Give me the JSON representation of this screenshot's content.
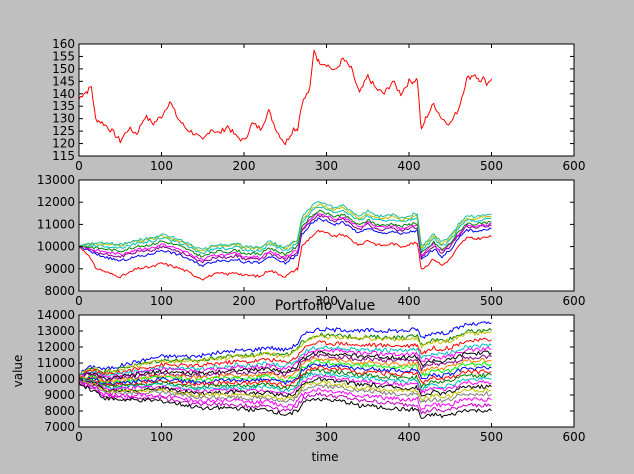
{
  "figure": {
    "background": "#bfbfbf"
  },
  "chart_data": [
    {
      "type": "line",
      "title": "",
      "xlabel": "",
      "ylabel": "",
      "xlim": [
        0,
        600
      ],
      "ylim": [
        115,
        160
      ],
      "xticks": [
        "0",
        "100",
        "200",
        "300",
        "400",
        "500",
        "600"
      ],
      "yticks": [
        "115",
        "120",
        "125",
        "130",
        "135",
        "140",
        "145",
        "150",
        "155",
        "160"
      ],
      "series": [
        {
          "color": "#ff0000",
          "x": [
            0,
            5,
            10,
            15,
            20,
            30,
            40,
            50,
            60,
            70,
            80,
            90,
            100,
            110,
            120,
            130,
            140,
            150,
            160,
            170,
            180,
            190,
            200,
            210,
            220,
            230,
            240,
            250,
            260,
            265,
            270,
            280,
            285,
            290,
            300,
            310,
            320,
            330,
            340,
            350,
            360,
            370,
            380,
            390,
            400,
            405,
            410,
            415,
            420,
            430,
            440,
            450,
            460,
            470,
            480,
            485,
            490,
            495,
            500
          ],
          "y": [
            138,
            140,
            141,
            143,
            130,
            128,
            125,
            121,
            126,
            124,
            131,
            128,
            131,
            137,
            130,
            126,
            124,
            121,
            126,
            124,
            127,
            123,
            121,
            128,
            126,
            133,
            125,
            120,
            126,
            126,
            136,
            142,
            158,
            153,
            152,
            149,
            154,
            150,
            140,
            147,
            142,
            140,
            145,
            140,
            145,
            145,
            146,
            125,
            130,
            136,
            130,
            128,
            134,
            146,
            148,
            145,
            146,
            143,
            146
          ]
        }
      ]
    },
    {
      "type": "line",
      "title": "",
      "xlabel": "",
      "ylabel": "",
      "xlim": [
        0,
        600
      ],
      "ylim": [
        8000,
        13000
      ],
      "xticks": [
        "0",
        "100",
        "200",
        "300",
        "400",
        "500",
        "600"
      ],
      "yticks": [
        "8000",
        "9000",
        "10000",
        "11000",
        "12000",
        "13000"
      ],
      "x": [
        0,
        10,
        20,
        30,
        40,
        50,
        60,
        70,
        80,
        90,
        100,
        110,
        120,
        130,
        140,
        150,
        160,
        170,
        180,
        190,
        200,
        210,
        220,
        230,
        240,
        250,
        260,
        265,
        270,
        280,
        290,
        300,
        310,
        320,
        330,
        340,
        350,
        360,
        370,
        380,
        390,
        400,
        405,
        410,
        415,
        420,
        430,
        440,
        450,
        460,
        470,
        480,
        490,
        500
      ],
      "base": [
        10000,
        10000,
        9950,
        9900,
        9850,
        9800,
        9900,
        10000,
        10050,
        10100,
        10250,
        10150,
        10050,
        9900,
        9700,
        9550,
        9700,
        9800,
        9750,
        9850,
        9700,
        9700,
        9650,
        9950,
        9800,
        9650,
        9900,
        10000,
        10900,
        11300,
        11600,
        11500,
        11350,
        11450,
        11200,
        10950,
        11200,
        11000,
        10950,
        11050,
        10900,
        11000,
        11050,
        11050,
        9700,
        9850,
        10200,
        9850,
        10150,
        10650,
        11050,
        11000,
        11050,
        11100
      ],
      "series": [
        {
          "color": "#ff0000",
          "offsets": [
            0,
            -300,
            -900,
            -1000,
            -1100,
            -1150,
            -1100,
            -1000,
            -1000,
            -1000,
            -1000,
            -1000,
            -1000,
            -1000,
            -1000,
            -1000,
            -1000,
            -1000,
            -1000,
            -1000,
            -1000,
            -1000,
            -1000,
            -1000,
            -1000,
            -1000,
            -1000,
            -1000,
            -900,
            -900,
            -900,
            -900,
            -900,
            -900,
            -900,
            -900,
            -900,
            -900,
            -900,
            -900,
            -900,
            -900,
            -900,
            -900,
            -700,
            -750,
            -750,
            -700,
            -700,
            -650,
            -650,
            -650,
            -650,
            -650
          ]
        },
        {
          "color": "#0000ff",
          "offsets": [
            0,
            -150,
            -300,
            -350,
            -400,
            -450,
            -450,
            -450,
            -450,
            -400,
            -400,
            -400,
            -400,
            -400,
            -400,
            -400,
            -400,
            -400,
            -400,
            -400,
            -400,
            -400,
            -400,
            -400,
            -400,
            -400,
            -400,
            -400,
            -350,
            -350,
            -350,
            -350,
            -350,
            -350,
            -350,
            -350,
            -350,
            -350,
            -350,
            -350,
            -350,
            -350,
            -350,
            -350,
            -300,
            -300,
            -300,
            -300,
            -300,
            -300,
            -300,
            -300,
            -300,
            -300
          ]
        },
        {
          "color": "#7f007f",
          "offsets": [
            0,
            -100,
            -200,
            -250,
            -250,
            -250,
            -250,
            -250,
            -250,
            -250,
            -250,
            -250,
            -250,
            -250,
            -250,
            -250,
            -250,
            -250,
            -250,
            -250,
            -250,
            -250,
            -250,
            -250,
            -250,
            -250,
            -250,
            -250,
            -200,
            -200,
            -200,
            -200,
            -200,
            -200,
            -200,
            -200,
            -200,
            -200,
            -200,
            -200,
            -200,
            -200,
            -200,
            -200,
            -150,
            -150,
            -150,
            -150,
            -150,
            -150,
            -150,
            -150,
            -150,
            -150
          ]
        },
        {
          "color": "#ff00ff",
          "offsets": [
            0,
            -50,
            -100,
            -120,
            -130,
            -150,
            -150,
            -150,
            -150,
            -150,
            -150,
            -150,
            -150,
            -150,
            -150,
            -150,
            -150,
            -150,
            -150,
            -150,
            -150,
            -150,
            -150,
            -150,
            -150,
            -150,
            -150,
            -150,
            -100,
            -100,
            -100,
            -100,
            -100,
            -100,
            -100,
            -100,
            -100,
            -100,
            -100,
            -100,
            -100,
            -100,
            -100,
            -100,
            -80,
            -80,
            -80,
            -80,
            -80,
            -80,
            -80,
            -80,
            -80,
            -80
          ]
        },
        {
          "color": "#008000",
          "offsets": [
            0,
            0,
            0,
            0,
            0,
            0,
            0,
            0,
            0,
            0,
            0,
            0,
            0,
            0,
            0,
            0,
            0,
            0,
            0,
            0,
            0,
            0,
            0,
            0,
            0,
            0,
            0,
            0,
            0,
            0,
            0,
            0,
            0,
            0,
            0,
            0,
            0,
            0,
            0,
            0,
            0,
            0,
            0,
            0,
            0,
            0,
            0,
            0,
            0,
            0,
            0,
            0,
            0,
            0
          ]
        },
        {
          "color": "#00bfbf",
          "offsets": [
            0,
            50,
            100,
            120,
            140,
            150,
            150,
            150,
            150,
            150,
            150,
            150,
            150,
            150,
            150,
            150,
            150,
            150,
            150,
            150,
            150,
            150,
            150,
            150,
            150,
            150,
            150,
            150,
            200,
            200,
            200,
            200,
            200,
            200,
            200,
            200,
            200,
            200,
            200,
            200,
            200,
            200,
            200,
            200,
            150,
            150,
            150,
            150,
            150,
            150,
            150,
            150,
            150,
            150
          ]
        },
        {
          "color": "#bfbf00",
          "offsets": [
            0,
            80,
            160,
            200,
            220,
            240,
            240,
            240,
            240,
            240,
            240,
            240,
            240,
            240,
            240,
            240,
            240,
            240,
            240,
            240,
            240,
            240,
            240,
            240,
            240,
            240,
            240,
            240,
            300,
            300,
            300,
            300,
            300,
            300,
            300,
            300,
            300,
            300,
            300,
            300,
            300,
            300,
            300,
            300,
            250,
            250,
            250,
            250,
            250,
            250,
            250,
            250,
            250,
            250
          ]
        },
        {
          "color": "#1abc9c",
          "offsets": [
            0,
            100,
            200,
            250,
            280,
            300,
            300,
            300,
            300,
            300,
            300,
            300,
            300,
            300,
            300,
            300,
            300,
            300,
            300,
            300,
            300,
            300,
            300,
            300,
            300,
            300,
            300,
            300,
            400,
            450,
            450,
            400,
            400,
            400,
            400,
            400,
            400,
            400,
            400,
            400,
            400,
            400,
            400,
            400,
            350,
            350,
            350,
            350,
            350,
            350,
            350,
            350,
            350,
            350
          ]
        }
      ]
    },
    {
      "type": "line",
      "title": "Portfolio Value",
      "xlabel": "time",
      "ylabel": "value",
      "xlim": [
        0,
        600
      ],
      "ylim": [
        7000,
        14000
      ],
      "xticks": [
        "0",
        "100",
        "200",
        "300",
        "400",
        "500",
        "600"
      ],
      "yticks": [
        "7000",
        "8000",
        "9000",
        "10000",
        "11000",
        "12000",
        "13000",
        "14000"
      ],
      "x": [
        0,
        10,
        20,
        30,
        40,
        50,
        60,
        70,
        80,
        90,
        100,
        110,
        120,
        130,
        140,
        150,
        160,
        170,
        180,
        190,
        200,
        210,
        220,
        230,
        240,
        250,
        260,
        265,
        270,
        280,
        290,
        300,
        310,
        320,
        330,
        340,
        350,
        360,
        370,
        380,
        390,
        400,
        405,
        410,
        415,
        420,
        430,
        440,
        450,
        460,
        470,
        480,
        490,
        500
      ],
      "base": [
        10000,
        10050,
        10000,
        9700,
        9700,
        9750,
        9800,
        9850,
        9900,
        9950,
        10000,
        9950,
        9900,
        9850,
        9800,
        9800,
        9850,
        9900,
        9900,
        9950,
        9900,
        9900,
        9950,
        10000,
        9850,
        9750,
        9950,
        10100,
        10500,
        10800,
        10900,
        10850,
        10800,
        10800,
        10700,
        10600,
        10650,
        10600,
        10550,
        10550,
        10500,
        10500,
        10550,
        10550,
        10000,
        10100,
        10300,
        10200,
        10300,
        10500,
        10700,
        10650,
        10700,
        10700
      ],
      "series": [
        {
          "color": "#0000ff",
          "spread": 2.4
        },
        {
          "color": "#008000",
          "spread": 2.0
        },
        {
          "color": "#bfbf00",
          "spread": 1.9
        },
        {
          "color": "#ff0000",
          "spread": 1.5
        },
        {
          "color": "#00bfbf",
          "spread": 1.2
        },
        {
          "color": "#ff00ff",
          "spread": 1.0
        },
        {
          "color": "#000000",
          "spread": 0.8
        },
        {
          "color": "#7f007f",
          "spread": 0.6
        },
        {
          "color": "#ff7f00",
          "spread": 0.4
        },
        {
          "color": "#00ff00",
          "spread": 0.2
        },
        {
          "color": "#0000ff",
          "spread": 0.0
        },
        {
          "color": "#ff0000",
          "spread": -0.2
        },
        {
          "color": "#008000",
          "spread": -0.4
        },
        {
          "color": "#00bfbf",
          "spread": -0.6
        },
        {
          "color": "#ff00ff",
          "spread": -0.8
        },
        {
          "color": "#000000",
          "spread": -1.0
        },
        {
          "color": "#bfbf00",
          "spread": -1.2
        },
        {
          "color": "#7f7f7f",
          "spread": -1.4
        },
        {
          "color": "#ff00ff",
          "spread": -1.7
        },
        {
          "color": "#bf00bf",
          "spread": -2.0
        },
        {
          "color": "#000000",
          "spread": -2.3
        }
      ]
    }
  ]
}
